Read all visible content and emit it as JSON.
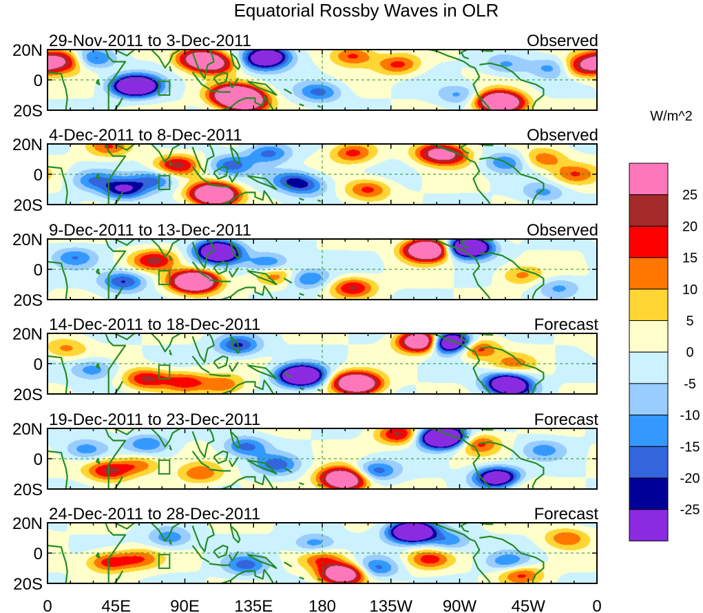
{
  "title": "Equatorial Rossby Waves in OLR",
  "units": "W/m^2",
  "lat_labels": [
    "20N",
    "0",
    "20S"
  ],
  "lon_labels": [
    "0",
    "45E",
    "90E",
    "135E",
    "180",
    "135W",
    "90W",
    "45W",
    "0"
  ],
  "colorbar": {
    "labels": [
      "25",
      "20",
      "15",
      "10",
      "5",
      "0",
      "-5",
      "-10",
      "-15",
      "-20",
      "-25"
    ],
    "colors": [
      "#ff77bb",
      "#a52a2a",
      "#ff0000",
      "#ff7700",
      "#ffd633",
      "#ffffcc",
      "#ccf2ff",
      "#99ccff",
      "#3399ff",
      "#3366dd",
      "#000099",
      "#8a2be2"
    ]
  },
  "panels": [
    {
      "dates": "29-Nov-2011 to 3-Dec-2011",
      "kind": "Observed"
    },
    {
      "dates": "4-Dec-2011 to 8-Dec-2011",
      "kind": "Observed"
    },
    {
      "dates": "9-Dec-2011 to 13-Dec-2011",
      "kind": "Observed"
    },
    {
      "dates": "14-Dec-2011 to 18-Dec-2011",
      "kind": "Forecast"
    },
    {
      "dates": "19-Dec-2011 to 23-Dec-2011",
      "kind": "Forecast"
    },
    {
      "dates": "24-Dec-2011 to 28-Dec-2011",
      "kind": "Forecast"
    }
  ],
  "anomalies": [
    [
      [
        8,
        14,
        1.3
      ],
      [
        12,
        10,
        0.6
      ],
      [
        100,
        14,
        2.5
      ],
      [
        110,
        10,
        1.5
      ],
      [
        120,
        -10,
        2.3
      ],
      [
        130,
        -15,
        2.3
      ],
      [
        128,
        -10,
        1.3
      ],
      [
        200,
        16,
        1.2
      ],
      [
        230,
        10,
        1.2
      ],
      [
        295,
        -14,
        2.5
      ],
      [
        299,
        -16,
        1.5
      ],
      [
        352,
        8,
        1.3
      ],
      [
        355,
        12,
        0.8
      ],
      [
        30,
        14,
        -1.2
      ],
      [
        60,
        -4,
        -2.0
      ],
      [
        55,
        -4,
        -1.8
      ],
      [
        140,
        12,
        -1.2
      ],
      [
        145,
        16,
        -2.2
      ],
      [
        178,
        -8,
        -1.2
      ],
      [
        270,
        -10,
        -0.8
      ],
      [
        300,
        10,
        -0.8
      ],
      [
        330,
        8,
        -0.8
      ]
    ],
    [
      [
        40,
        18,
        1.0
      ],
      [
        85,
        6,
        1.5
      ],
      [
        110,
        -14,
        2.3
      ],
      [
        108,
        -12,
        1.8
      ],
      [
        200,
        14,
        1.2
      ],
      [
        210,
        -10,
        1.2
      ],
      [
        255,
        14,
        1.8
      ],
      [
        265,
        12,
        1.0
      ],
      [
        325,
        10,
        1.0
      ],
      [
        345,
        0,
        1.0
      ],
      [
        30,
        -4,
        -1.0
      ],
      [
        50,
        -10,
        -1.8
      ],
      [
        70,
        -4,
        -1.2
      ],
      [
        120,
        6,
        -1.2
      ],
      [
        145,
        14,
        -1.2
      ],
      [
        160,
        -4,
        -1.2
      ],
      [
        170,
        -8,
        -1.0
      ],
      [
        300,
        8,
        -1.0
      ],
      [
        325,
        -12,
        -0.8
      ]
    ],
    [
      [
        70,
        6,
        1.5
      ],
      [
        95,
        -8,
        2.3
      ],
      [
        98,
        -8,
        1.8
      ],
      [
        150,
        -4,
        1.0
      ],
      [
        200,
        -12,
        1.5
      ],
      [
        248,
        12,
        2.3
      ],
      [
        250,
        14,
        1.6
      ],
      [
        310,
        -4,
        0.8
      ],
      [
        18,
        8,
        -1.0
      ],
      [
        50,
        -8,
        -1.5
      ],
      [
        110,
        14,
        -1.5
      ],
      [
        113,
        10,
        -2.2
      ],
      [
        145,
        4,
        -1.2
      ],
      [
        170,
        -6,
        -1.2
      ],
      [
        275,
        15,
        -2.2
      ],
      [
        277,
        14,
        -1.6
      ],
      [
        335,
        -12,
        -0.8
      ]
    ],
    [
      [
        12,
        10,
        0.8
      ],
      [
        65,
        -10,
        1.5
      ],
      [
        90,
        -12,
        1.3
      ],
      [
        115,
        -14,
        1.0
      ],
      [
        200,
        -12,
        2.0
      ],
      [
        205,
        -14,
        1.8
      ],
      [
        245,
        15,
        2.2
      ],
      [
        247,
        14,
        1.6
      ],
      [
        280,
        10,
        1.5
      ],
      [
        305,
        0,
        0.8
      ],
      [
        30,
        -4,
        -1.0
      ],
      [
        125,
        12,
        -1.5
      ],
      [
        165,
        -8,
        -2.2
      ],
      [
        168,
        -8,
        -1.6
      ],
      [
        262,
        14,
        -2.5
      ],
      [
        264,
        14,
        -1.6
      ],
      [
        300,
        -12,
        -2.0
      ],
      [
        305,
        -16,
        -1.6
      ]
    ],
    [
      [
        40,
        -8,
        1.5
      ],
      [
        60,
        -4,
        1.0
      ],
      [
        100,
        -10,
        1.0
      ],
      [
        192,
        -12,
        2.1
      ],
      [
        196,
        -16,
        1.6
      ],
      [
        230,
        16,
        1.5
      ],
      [
        282,
        10,
        1.2
      ],
      [
        305,
        -16,
        1.2
      ],
      [
        25,
        6,
        -1.0
      ],
      [
        65,
        10,
        -1.0
      ],
      [
        130,
        8,
        -1.2
      ],
      [
        150,
        -4,
        -1.2
      ],
      [
        215,
        -8,
        -1.3
      ],
      [
        258,
        14,
        -2.5
      ],
      [
        260,
        14,
        -1.8
      ],
      [
        293,
        -12,
        -1.8
      ],
      [
        300,
        -14,
        -1.8
      ],
      [
        325,
        6,
        -0.8
      ]
    ],
    [
      [
        40,
        -6,
        1.3
      ],
      [
        60,
        -4,
        1.0
      ],
      [
        180,
        -4,
        1.0
      ],
      [
        192,
        -14,
        1.8
      ],
      [
        195,
        -14,
        1.3
      ],
      [
        250,
        -4,
        1.2
      ],
      [
        310,
        -14,
        1.2
      ],
      [
        340,
        10,
        1.0
      ],
      [
        80,
        10,
        -1.0
      ],
      [
        130,
        -8,
        -1.2
      ],
      [
        175,
        6,
        -1.0
      ],
      [
        215,
        -10,
        -1.2
      ],
      [
        238,
        14,
        -2.2
      ],
      [
        240,
        14,
        -1.6
      ],
      [
        263,
        8,
        -1.0
      ],
      [
        302,
        -6,
        -1.0
      ]
    ]
  ]
}
